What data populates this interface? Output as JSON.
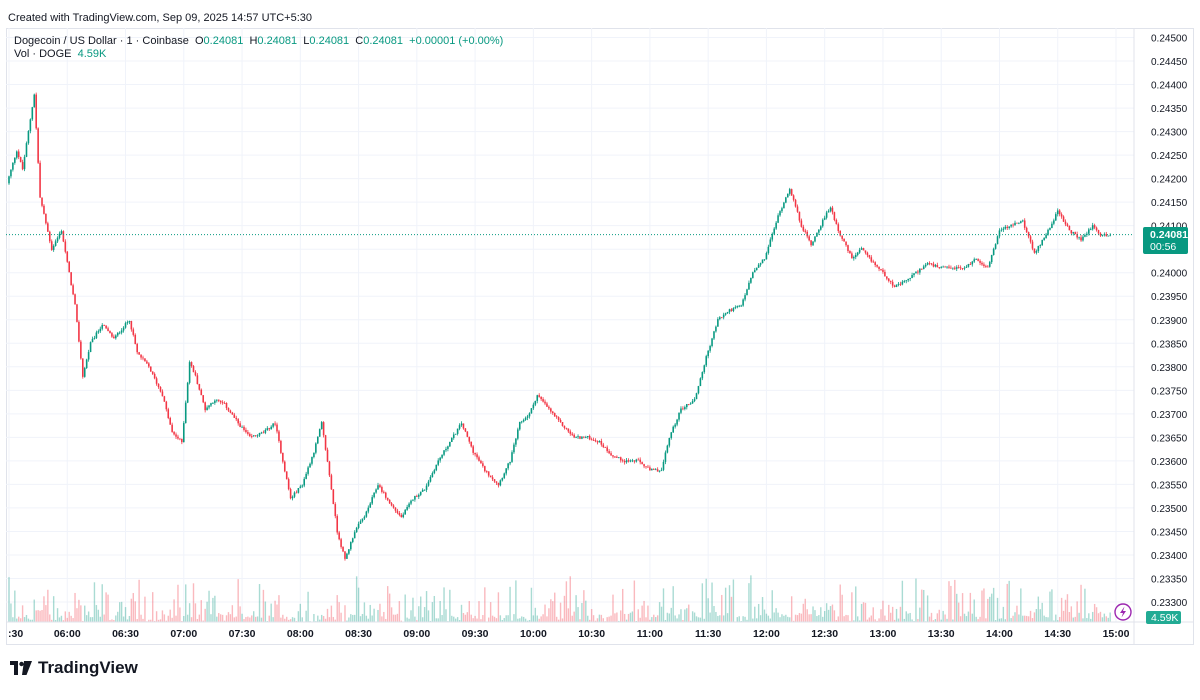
{
  "header": {
    "created": "Created with TradingView.com, Sep 09, 2025 14:57 UTC+5:30"
  },
  "legend": {
    "symbol": "Dogecoin / US Dollar · 1 · Coinbase",
    "o_label": "O",
    "o": "0.24081",
    "h_label": "H",
    "h": "0.24081",
    "l_label": "L",
    "l": "0.24081",
    "c_label": "C",
    "c": "0.24081",
    "change": "+0.00001 (+0.00%)",
    "vol_label": "Vol · DOGE",
    "vol": "4.59K"
  },
  "price_tag": {
    "price": "0.24081",
    "countdown": "00:56"
  },
  "vol_tag": "4.59K",
  "footer": {
    "logo_text": "TradingView"
  },
  "colors": {
    "up": "#089981",
    "down": "#f23645",
    "grid": "#f0f3fa",
    "text": "#131722",
    "dotted": "#089981"
  },
  "chart_data": {
    "type": "candlestick",
    "y_ticks": [
      "0.24500",
      "0.24450",
      "0.24400",
      "0.24350",
      "0.24300",
      "0.24250",
      "0.24200",
      "0.24150",
      "0.24100",
      "0.24050",
      "0.24000",
      "0.23950",
      "0.23900",
      "0.23850",
      "0.23800",
      "0.23750",
      "0.23700",
      "0.23650",
      "0.23600",
      "0.23550",
      "0.23500",
      "0.23450",
      "0.23400",
      "0.23350",
      "0.23300"
    ],
    "ylim": [
      0.2329,
      0.2451
    ],
    "x_ticks": [
      ":30",
      "06:00",
      "06:30",
      "07:00",
      "07:30",
      "08:00",
      "08:30",
      "09:00",
      "09:30",
      "10:00",
      "10:30",
      "11:00",
      "11:30",
      "12:00",
      "12:30",
      "13:00",
      "13:30",
      "14:00",
      "14:30",
      "15:00"
    ],
    "path": [
      [
        "05:30",
        0.2419
      ],
      [
        "05:35",
        0.2426
      ],
      [
        "05:38",
        0.2422
      ],
      [
        "05:44",
        0.2438
      ],
      [
        "05:47",
        0.2416
      ],
      [
        "05:53",
        0.2405
      ],
      [
        "05:58",
        0.2409
      ],
      [
        "06:05",
        0.2393
      ],
      [
        "06:09",
        0.2378
      ],
      [
        "06:13",
        0.2385
      ],
      [
        "06:19",
        0.2389
      ],
      [
        "06:25",
        0.2386
      ],
      [
        "06:33",
        0.239
      ],
      [
        "06:37",
        0.2383
      ],
      [
        "06:43",
        0.238
      ],
      [
        "06:50",
        0.2374
      ],
      [
        "06:55",
        0.2366
      ],
      [
        "07:00",
        0.2364
      ],
      [
        "07:04",
        0.2381
      ],
      [
        "07:07",
        0.2378
      ],
      [
        "07:12",
        0.2371
      ],
      [
        "07:17",
        0.2373
      ],
      [
        "07:22",
        0.2372
      ],
      [
        "07:29",
        0.2368
      ],
      [
        "07:35",
        0.2365
      ],
      [
        "07:42",
        0.2366
      ],
      [
        "07:48",
        0.2368
      ],
      [
        "07:56",
        0.2352
      ],
      [
        "08:02",
        0.2355
      ],
      [
        "08:08",
        0.2362
      ],
      [
        "08:12",
        0.2368
      ],
      [
        "08:16",
        0.2357
      ],
      [
        "08:20",
        0.2345
      ],
      [
        "08:24",
        0.2339
      ],
      [
        "08:29",
        0.2345
      ],
      [
        "08:35",
        0.2349
      ],
      [
        "08:41",
        0.2355
      ],
      [
        "08:47",
        0.2351
      ],
      [
        "08:53",
        0.2348
      ],
      [
        "08:59",
        0.2352
      ],
      [
        "09:05",
        0.2354
      ],
      [
        "09:12",
        0.236
      ],
      [
        "09:18",
        0.2364
      ],
      [
        "09:24",
        0.2368
      ],
      [
        "09:30",
        0.2362
      ],
      [
        "09:36",
        0.2358
      ],
      [
        "09:43",
        0.2355
      ],
      [
        "09:49",
        0.236
      ],
      [
        "09:54",
        0.2368
      ],
      [
        "09:59",
        0.237
      ],
      [
        "10:03",
        0.2374
      ],
      [
        "10:09",
        0.2371
      ],
      [
        "10:15",
        0.2368
      ],
      [
        "10:22",
        0.2365
      ],
      [
        "10:29",
        0.2365
      ],
      [
        "10:35",
        0.2364
      ],
      [
        "10:42",
        0.2361
      ],
      [
        "10:48",
        0.236
      ],
      [
        "10:55",
        0.236
      ],
      [
        "11:01",
        0.2358
      ],
      [
        "11:07",
        0.2358
      ],
      [
        "11:11",
        0.2365
      ],
      [
        "11:17",
        0.2371
      ],
      [
        "11:24",
        0.2373
      ],
      [
        "11:30",
        0.2382
      ],
      [
        "11:36",
        0.239
      ],
      [
        "11:42",
        0.2392
      ],
      [
        "11:48",
        0.2393
      ],
      [
        "11:54",
        0.24
      ],
      [
        "12:00",
        0.2403
      ],
      [
        "12:07",
        0.2412
      ],
      [
        "12:13",
        0.2418
      ],
      [
        "12:19",
        0.241
      ],
      [
        "12:24",
        0.2406
      ],
      [
        "12:30",
        0.2411
      ],
      [
        "12:34",
        0.2414
      ],
      [
        "12:38",
        0.2409
      ],
      [
        "12:45",
        0.2403
      ],
      [
        "12:50",
        0.2405
      ],
      [
        "12:54",
        0.2403
      ],
      [
        "13:01",
        0.24
      ],
      [
        "13:07",
        0.2397
      ],
      [
        "13:12",
        0.2398
      ],
      [
        "13:18",
        0.24
      ],
      [
        "13:24",
        0.2402
      ],
      [
        "13:30",
        0.2401
      ],
      [
        "13:36",
        0.2401
      ],
      [
        "13:43",
        0.2401
      ],
      [
        "13:49",
        0.2403
      ],
      [
        "13:55",
        0.2401
      ],
      [
        "14:01",
        0.2409
      ],
      [
        "14:07",
        0.241
      ],
      [
        "14:13",
        0.2411
      ],
      [
        "14:19",
        0.2404
      ],
      [
        "14:26",
        0.2409
      ],
      [
        "14:31",
        0.2413
      ],
      [
        "14:37",
        0.2409
      ],
      [
        "14:43",
        0.2407
      ],
      [
        "14:49",
        0.241
      ],
      [
        "14:53",
        0.2408
      ]
    ],
    "last_price": 0.24081,
    "volume": {
      "label": "Vol · DOGE",
      "last": "4.59K"
    }
  }
}
